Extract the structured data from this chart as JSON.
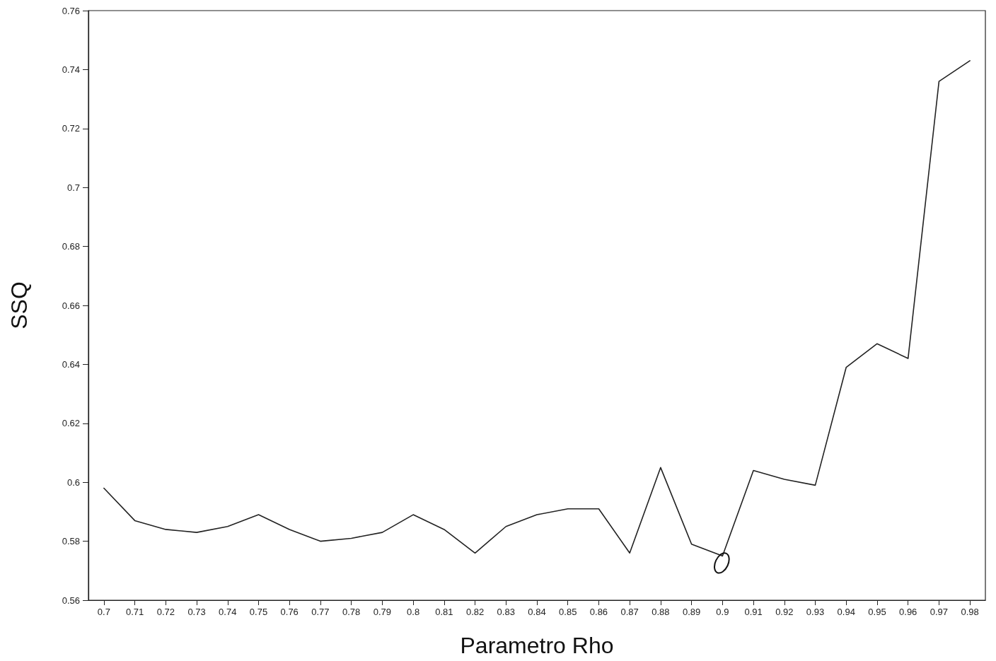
{
  "chart_data": {
    "type": "line",
    "xlabel": "Parametro Rho",
    "ylabel": "SSQ",
    "categories": [
      "0.7",
      "0.71",
      "0.72",
      "0.73",
      "0.74",
      "0.75",
      "0.76",
      "0.77",
      "0.78",
      "0.79",
      "0.8",
      "0.81",
      "0.82",
      "0.83",
      "0.84",
      "0.85",
      "0.86",
      "0.87",
      "0.88",
      "0.89",
      "0.9",
      "0.91",
      "0.92",
      "0.93",
      "0.94",
      "0.95",
      "0.96",
      "0.97",
      "0.98"
    ],
    "values": [
      0.598,
      0.587,
      0.584,
      0.583,
      0.585,
      0.589,
      0.584,
      0.58,
      0.581,
      0.583,
      0.589,
      0.584,
      0.576,
      0.585,
      0.589,
      0.591,
      0.591,
      0.576,
      0.605,
      0.579,
      0.575,
      0.604,
      0.601,
      0.599,
      0.639,
      0.647,
      0.642,
      0.736,
      0.743
    ],
    "color": "#222222",
    "ylim": [
      0.56,
      0.76
    ],
    "yticks": [
      0.56,
      0.58,
      0.6,
      0.62,
      0.64,
      0.66,
      0.68,
      0.7,
      0.72,
      0.74,
      0.76
    ],
    "grid": false,
    "marker": "none",
    "line_style": "solid"
  }
}
